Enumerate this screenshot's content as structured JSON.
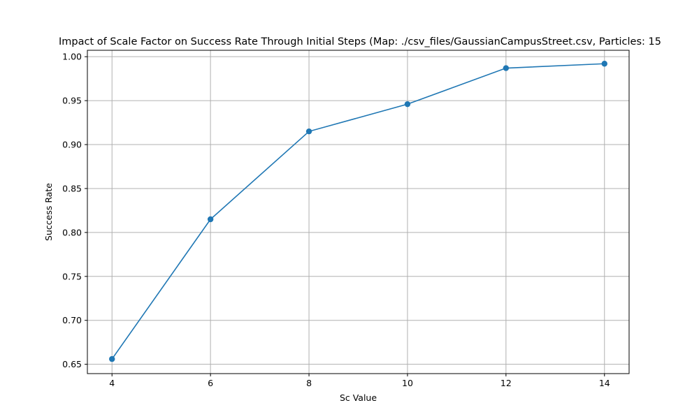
{
  "chart_data": {
    "type": "line",
    "title": "Impact of Scale Factor on Success Rate Through Initial Steps (Map: ./csv_files/GaussianCampusStreet.csv, Particles: 15",
    "xlabel": "Sc Value",
    "ylabel": "Success Rate",
    "x": [
      4,
      6,
      8,
      10,
      12,
      14
    ],
    "xticks": [
      4,
      6,
      8,
      10,
      12,
      14
    ],
    "xtick_labels": [
      "4",
      "6",
      "8",
      "10",
      "12",
      "14"
    ],
    "yticks": [
      0.65,
      0.7,
      0.75,
      0.8,
      0.85,
      0.9,
      0.95,
      1.0
    ],
    "ytick_labels": [
      "0.65",
      "0.70",
      "0.75",
      "0.80",
      "0.85",
      "0.90",
      "0.95",
      "1.00"
    ],
    "xlim": [
      3.5,
      14.5
    ],
    "ylim": [
      0.6394,
      1.0073
    ],
    "grid": true,
    "series": [
      {
        "name": "",
        "color": "#1f77b4",
        "marker": "circle",
        "values": [
          0.656,
          0.815,
          0.915,
          0.946,
          0.987,
          0.992
        ]
      }
    ]
  }
}
